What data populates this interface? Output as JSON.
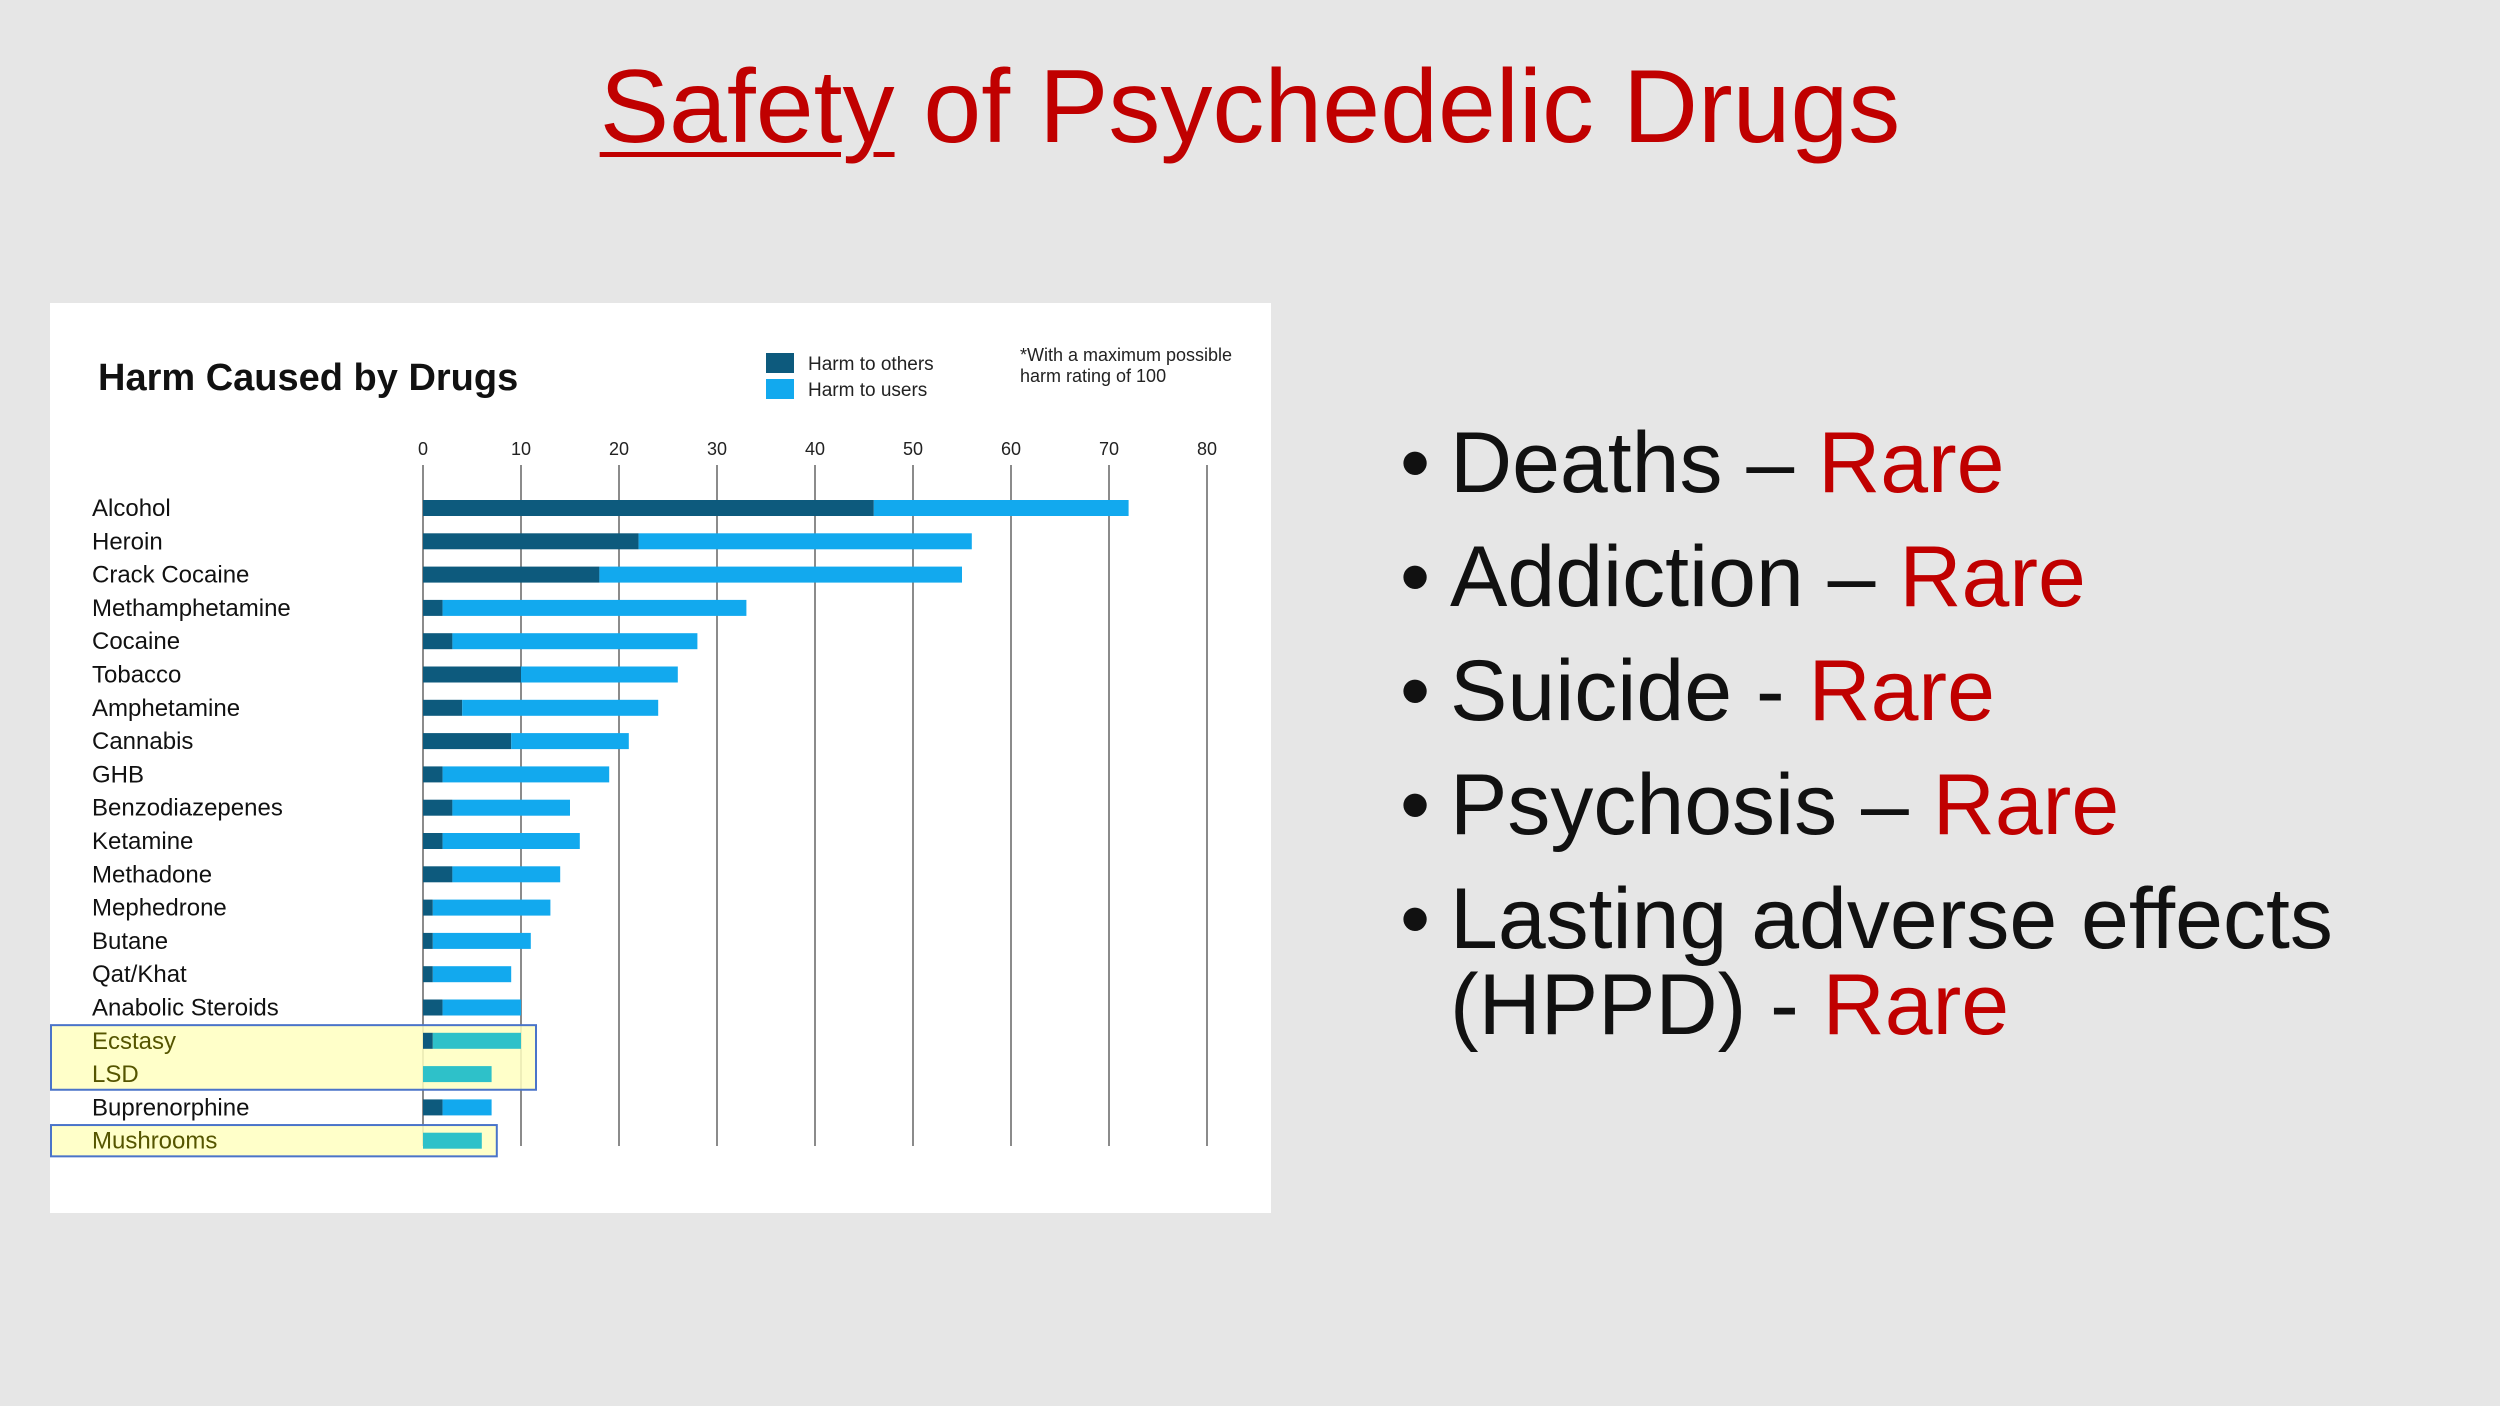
{
  "slide": {
    "title_underlined": "Safety",
    "title_rest": " of Psychedelic Drugs",
    "bullets": [
      {
        "text": "Deaths – ",
        "highlight": "Rare"
      },
      {
        "text": "Addiction – ",
        "highlight": "Rare"
      },
      {
        "text": "Suicide - ",
        "highlight": "Rare"
      },
      {
        "text": "Psychosis – ",
        "highlight": "Rare"
      },
      {
        "text": "Lasting adverse effects (HPPD) - ",
        "highlight": "Rare"
      }
    ],
    "bullet_glyph": "•"
  },
  "colors": {
    "title": "#c00000",
    "others": "#0d5a7d",
    "users": "#12a9ee",
    "highlight_users": "#2ec1c9",
    "highlight_box": "#ffffc0",
    "highlight_border": "#4a74c9"
  },
  "chart_data": {
    "type": "bar",
    "orientation": "horizontal",
    "stacked": true,
    "title": "Harm Caused by Drugs",
    "note": "*With a maximum possible harm rating of 100",
    "legend_position": "top-right",
    "xlim": [
      0,
      80
    ],
    "xticks": [
      0,
      10,
      20,
      30,
      40,
      50,
      60,
      70,
      80
    ],
    "grid": true,
    "categories": [
      "Alcohol",
      "Heroin",
      "Crack Cocaine",
      "Methamphetamine",
      "Cocaine",
      "Tobacco",
      "Amphetamine",
      "Cannabis",
      "GHB",
      "Benzodiazepenes",
      "Ketamine",
      "Methadone",
      "Mephedrone",
      "Butane",
      "Qat/Khat",
      "Anabolic Steroids",
      "Ecstasy",
      "LSD",
      "Buprenorphine",
      "Mushrooms"
    ],
    "highlighted": [
      "Ecstasy",
      "LSD",
      "Mushrooms"
    ],
    "series": [
      {
        "name": "Harm to others",
        "values": [
          46,
          22,
          18,
          2,
          3,
          10,
          4,
          9,
          2,
          3,
          2,
          3,
          1,
          1,
          1,
          2,
          1,
          0,
          2,
          0
        ]
      },
      {
        "name": "Harm to users",
        "values": [
          26,
          34,
          37,
          31,
          25,
          16,
          20,
          12,
          17,
          12,
          14,
          11,
          12,
          10,
          8,
          8,
          9,
          7,
          5,
          6
        ]
      }
    ]
  }
}
